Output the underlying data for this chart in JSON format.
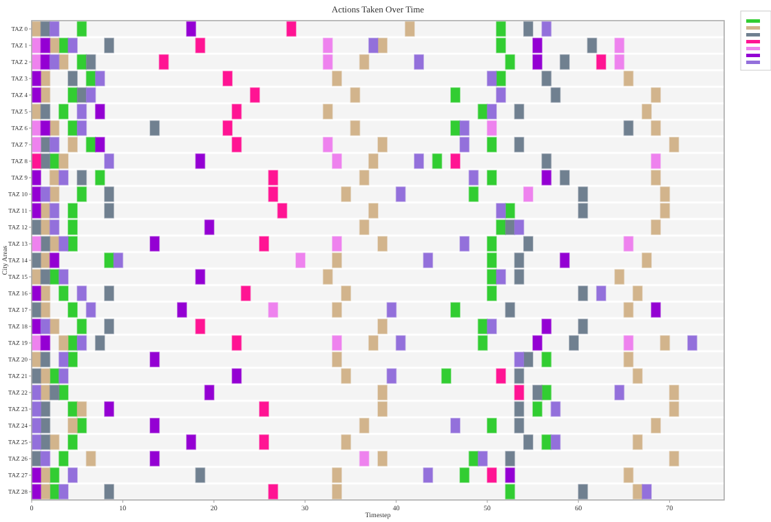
{
  "chart_data": {
    "type": "bar",
    "orientation": "horizontal",
    "title": "Actions Taken Over Time",
    "xlabel": "Timestep",
    "ylabel": "City Areas",
    "grid": false,
    "xlim": [
      0,
      76
    ],
    "xticks": [
      0,
      10,
      20,
      30,
      40,
      50,
      60,
      70
    ],
    "categories": [
      "TAZ 0",
      "TAZ 1",
      "TAZ 2",
      "TAZ 3",
      "TAZ 4",
      "TAZ 5",
      "TAZ 6",
      "TAZ 7",
      "TAZ 8",
      "TAZ 9",
      "TAZ 10",
      "TAZ 11",
      "TAZ 12",
      "TAZ 13",
      "TAZ 14",
      "TAZ 15",
      "TAZ 16",
      "TAZ 17",
      "TAZ 18",
      "TAZ 19",
      "TAZ 20",
      "TAZ 21",
      "TAZ 22",
      "TAZ 23",
      "TAZ 24",
      "TAZ 25",
      "TAZ 26",
      "TAZ 27",
      "TAZ 28"
    ],
    "series": [
      {
        "color": "#32cd32",
        "base": [
          5,
          3,
          5,
          6,
          4,
          3,
          4,
          6,
          2,
          7,
          5,
          4,
          4,
          4,
          8,
          2,
          3,
          4,
          5,
          4,
          4,
          2,
          3,
          4,
          5,
          4,
          3,
          2,
          2
        ],
        "values": [
          1,
          1,
          1,
          1,
          1,
          1,
          1,
          1,
          1,
          1,
          1,
          1,
          1,
          1,
          1,
          1,
          1,
          1,
          1,
          1,
          1,
          1,
          1,
          1,
          1,
          1,
          1,
          1,
          1
        ]
      },
      {
        "color": "#32cd32",
        "base": [
          51,
          51,
          52,
          51,
          46,
          49,
          46,
          50,
          44,
          50,
          48,
          52,
          51,
          50,
          50,
          50,
          50,
          46,
          49,
          49,
          56,
          45,
          56,
          55,
          50,
          56,
          48,
          47,
          52
        ],
        "values": [
          1,
          1,
          1,
          1,
          1,
          1,
          1,
          1,
          1,
          1,
          1,
          1,
          1,
          1,
          1,
          1,
          1,
          1,
          1,
          1,
          1,
          1,
          1,
          1,
          1,
          1,
          1,
          1,
          1
        ]
      },
      {
        "color": "#d2b48c",
        "base": [
          0,
          2,
          3,
          1,
          1,
          0,
          2,
          4,
          3,
          2,
          2,
          1,
          1,
          2,
          1,
          0,
          1,
          1,
          2,
          3,
          0,
          1,
          1,
          5,
          4,
          2,
          6,
          1,
          1
        ],
        "values": [
          1,
          1,
          1,
          1,
          1,
          1,
          1,
          1,
          1,
          1,
          1,
          1,
          1,
          1,
          1,
          1,
          1,
          1,
          1,
          1,
          1,
          1,
          1,
          1,
          1,
          1,
          1,
          1,
          1
        ]
      },
      {
        "color": "#d2b48c",
        "base": [
          41,
          38,
          36,
          33,
          35,
          32,
          35,
          38,
          37,
          36,
          34,
          37,
          36,
          38,
          33,
          32,
          34,
          33,
          38,
          37,
          33,
          34,
          38,
          38,
          36,
          34,
          38,
          33,
          33
        ],
        "values": [
          1,
          1,
          1,
          1,
          1,
          1,
          1,
          1,
          1,
          1,
          1,
          1,
          1,
          1,
          1,
          1,
          1,
          1,
          1,
          1,
          1,
          1,
          1,
          1,
          1,
          1,
          1,
          1,
          1
        ]
      },
      {
        "color": "#d2b48c",
        "base": [
          null,
          null,
          null,
          65,
          68,
          67,
          68,
          70,
          null,
          68,
          69,
          69,
          68,
          null,
          67,
          64,
          66,
          65,
          null,
          69,
          65,
          66,
          70,
          70,
          68,
          66,
          70,
          65,
          66
        ],
        "values": [
          null,
          null,
          null,
          1,
          1,
          1,
          1,
          1,
          null,
          1,
          1,
          1,
          1,
          null,
          1,
          1,
          1,
          1,
          null,
          1,
          1,
          1,
          1,
          1,
          1,
          1,
          1,
          1,
          1
        ]
      },
      {
        "color": "#708090",
        "base": [
          1,
          8,
          6,
          4,
          5,
          1,
          13,
          1,
          1,
          5,
          8,
          8,
          0,
          1,
          0,
          1,
          8,
          0,
          8,
          7,
          1,
          0,
          2,
          1,
          1,
          1,
          0,
          18,
          8
        ],
        "values": [
          1,
          1,
          1,
          1,
          1,
          1,
          1,
          1,
          1,
          1,
          1,
          1,
          1,
          1,
          1,
          1,
          1,
          1,
          1,
          1,
          1,
          1,
          1,
          1,
          1,
          1,
          1,
          1,
          1
        ]
      },
      {
        "color": "#708090",
        "base": [
          54,
          61,
          58,
          56,
          57,
          53,
          65,
          53,
          56,
          58,
          60,
          60,
          52,
          54,
          53,
          53,
          60,
          52,
          60,
          59,
          54,
          53,
          55,
          53,
          53,
          54,
          52,
          null,
          60
        ],
        "values": [
          1,
          1,
          1,
          1,
          1,
          1,
          1,
          1,
          1,
          1,
          1,
          1,
          1,
          1,
          1,
          1,
          1,
          1,
          1,
          1,
          1,
          1,
          1,
          1,
          1,
          1,
          1,
          null,
          1
        ]
      },
      {
        "color": "#ff1493",
        "base": [
          28,
          18,
          14,
          21,
          24,
          22,
          21,
          22,
          0,
          26,
          26,
          27,
          null,
          25,
          null,
          null,
          23,
          null,
          18,
          22,
          null,
          51,
          53,
          25,
          null,
          25,
          null,
          50,
          26
        ],
        "values": [
          1,
          1,
          1,
          1,
          1,
          1,
          1,
          1,
          1,
          1,
          1,
          1,
          null,
          1,
          null,
          null,
          1,
          null,
          1,
          1,
          null,
          1,
          1,
          1,
          null,
          1,
          null,
          1,
          1
        ]
      },
      {
        "color": "#ff1493",
        "base": [
          null,
          null,
          62,
          null,
          null,
          null,
          null,
          null,
          46,
          null,
          null,
          null,
          null,
          null,
          null,
          null,
          null,
          null,
          null,
          null,
          null,
          null,
          null,
          null,
          null,
          null,
          null,
          null,
          null
        ],
        "values": [
          null,
          null,
          1,
          null,
          null,
          null,
          null,
          null,
          1,
          null,
          null,
          null,
          null,
          null,
          null,
          null,
          null,
          null,
          null,
          null,
          null,
          null,
          null,
          null,
          null,
          null,
          null,
          null,
          null
        ]
      },
      {
        "color": "#ee82ee",
        "base": [
          null,
          0,
          0,
          null,
          null,
          null,
          0,
          0,
          33,
          null,
          54,
          null,
          null,
          0,
          29,
          null,
          null,
          26,
          null,
          0,
          null,
          null,
          null,
          null,
          null,
          null,
          36,
          null,
          null
        ],
        "values": [
          null,
          1,
          1,
          null,
          null,
          null,
          1,
          1,
          1,
          null,
          1,
          null,
          null,
          1,
          1,
          null,
          null,
          1,
          null,
          1,
          null,
          null,
          null,
          null,
          null,
          null,
          1,
          null,
          null
        ]
      },
      {
        "color": "#ee82ee",
        "base": [
          null,
          32,
          32,
          null,
          null,
          null,
          50,
          32,
          68,
          null,
          null,
          null,
          null,
          33,
          null,
          null,
          null,
          null,
          null,
          33,
          null,
          null,
          null,
          null,
          null,
          null,
          null,
          null,
          null
        ],
        "values": [
          null,
          1,
          1,
          null,
          null,
          null,
          1,
          1,
          1,
          null,
          null,
          null,
          null,
          1,
          null,
          null,
          null,
          null,
          null,
          1,
          null,
          null,
          null,
          null,
          null,
          null,
          null,
          null,
          null
        ]
      },
      {
        "color": "#ee82ee",
        "base": [
          null,
          64,
          64,
          null,
          null,
          null,
          null,
          null,
          null,
          null,
          null,
          null,
          null,
          65,
          null,
          null,
          null,
          null,
          null,
          65,
          null,
          null,
          null,
          null,
          null,
          null,
          null,
          null,
          null
        ],
        "values": [
          null,
          1,
          1,
          null,
          null,
          null,
          null,
          null,
          null,
          null,
          null,
          null,
          null,
          1,
          null,
          null,
          null,
          null,
          null,
          1,
          null,
          null,
          null,
          null,
          null,
          null,
          null,
          null,
          null
        ]
      },
      {
        "color": "#9400d3",
        "base": [
          17,
          1,
          1,
          0,
          0,
          7,
          1,
          7,
          18,
          0,
          0,
          0,
          19,
          13,
          2,
          18,
          0,
          16,
          0,
          1,
          13,
          22,
          19,
          8,
          13,
          17,
          13,
          0,
          0
        ],
        "values": [
          1,
          1,
          1,
          1,
          1,
          1,
          1,
          1,
          1,
          1,
          1,
          1,
          1,
          1,
          1,
          1,
          1,
          1,
          1,
          1,
          1,
          1,
          1,
          1,
          1,
          1,
          1,
          1,
          1
        ]
      },
      {
        "color": "#9400d3",
        "base": [
          null,
          55,
          55,
          null,
          null,
          null,
          null,
          null,
          null,
          56,
          null,
          null,
          null,
          null,
          58,
          null,
          null,
          68,
          56,
          55,
          null,
          null,
          null,
          null,
          null,
          null,
          null,
          52,
          null
        ],
        "values": [
          null,
          1,
          1,
          null,
          null,
          null,
          null,
          null,
          null,
          1,
          null,
          null,
          null,
          null,
          1,
          null,
          null,
          1,
          1,
          1,
          null,
          null,
          null,
          null,
          null,
          null,
          null,
          1,
          null
        ]
      },
      {
        "color": "#9370db",
        "base": [
          2,
          4,
          2,
          7,
          6,
          5,
          5,
          2,
          8,
          3,
          1,
          2,
          2,
          3,
          9,
          3,
          5,
          6,
          1,
          5,
          3,
          3,
          0,
          0,
          0,
          0,
          1,
          4,
          3
        ],
        "values": [
          1,
          1,
          1,
          1,
          1,
          1,
          1,
          1,
          1,
          1,
          1,
          1,
          1,
          1,
          1,
          1,
          1,
          1,
          1,
          1,
          1,
          1,
          1,
          1,
          1,
          1,
          1,
          1,
          1
        ]
      },
      {
        "color": "#9370db",
        "base": [
          56,
          37,
          42,
          50,
          51,
          50,
          47,
          47,
          42,
          48,
          40,
          51,
          53,
          47,
          43,
          51,
          62,
          39,
          50,
          40,
          53,
          39,
          64,
          57,
          46,
          57,
          49,
          43,
          67
        ],
        "values": [
          1,
          1,
          1,
          1,
          1,
          1,
          1,
          1,
          1,
          1,
          1,
          1,
          1,
          1,
          1,
          1,
          1,
          1,
          1,
          1,
          1,
          1,
          1,
          1,
          1,
          1,
          1,
          1,
          1
        ]
      },
      {
        "color": "#9370db",
        "base": [
          null,
          null,
          null,
          null,
          null,
          null,
          null,
          null,
          null,
          null,
          null,
          null,
          null,
          null,
          null,
          null,
          null,
          null,
          null,
          72,
          null,
          null,
          null,
          null,
          null,
          null,
          null,
          null,
          null
        ],
        "values": [
          null,
          null,
          null,
          null,
          null,
          null,
          null,
          null,
          null,
          null,
          null,
          null,
          null,
          null,
          null,
          null,
          null,
          null,
          null,
          1,
          null,
          null,
          null,
          null,
          null,
          null,
          null,
          null,
          null
        ]
      }
    ]
  }
}
